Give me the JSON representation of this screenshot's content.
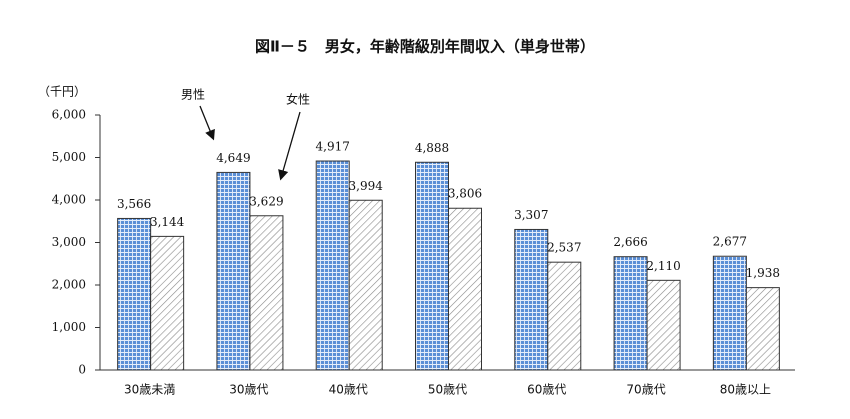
{
  "chart_data": {
    "type": "bar",
    "title": "図Ⅱ－５　男女，年齢階級別年間収入（単身世帯）",
    "y_unit": "（千円）",
    "categories": [
      "30歳未満",
      "30歳代",
      "40歳代",
      "50歳代",
      "60歳代",
      "70歳代",
      "80歳以上"
    ],
    "series": [
      {
        "name": "男性",
        "color": "#5b8fd6",
        "values": [
          3566,
          4649,
          4917,
          4888,
          3307,
          2666,
          2677
        ],
        "value_labels": [
          "3,566",
          "4,649",
          "4,917",
          "4,888",
          "3,307",
          "2,666",
          "2,677"
        ]
      },
      {
        "name": "女性",
        "color": "#8a8a8a",
        "values": [
          3144,
          3629,
          3994,
          3806,
          2537,
          2110,
          1938
        ],
        "value_labels": [
          "3,144",
          "3,629",
          "3,994",
          "3,806",
          "2,537",
          "2,110",
          "1,938"
        ]
      }
    ],
    "ylim": [
      0,
      6000
    ],
    "yticks": [
      0,
      {
        "value": 1000,
        "label": "1,000"
      },
      {
        "value": 2000,
        "label": "2,000"
      },
      {
        "value": 3000,
        "label": "3,000"
      },
      {
        "value": 4000,
        "label": "4,000"
      },
      {
        "value": 5000,
        "label": "5,000"
      },
      {
        "value": 6000,
        "label": "6,000"
      }
    ]
  }
}
